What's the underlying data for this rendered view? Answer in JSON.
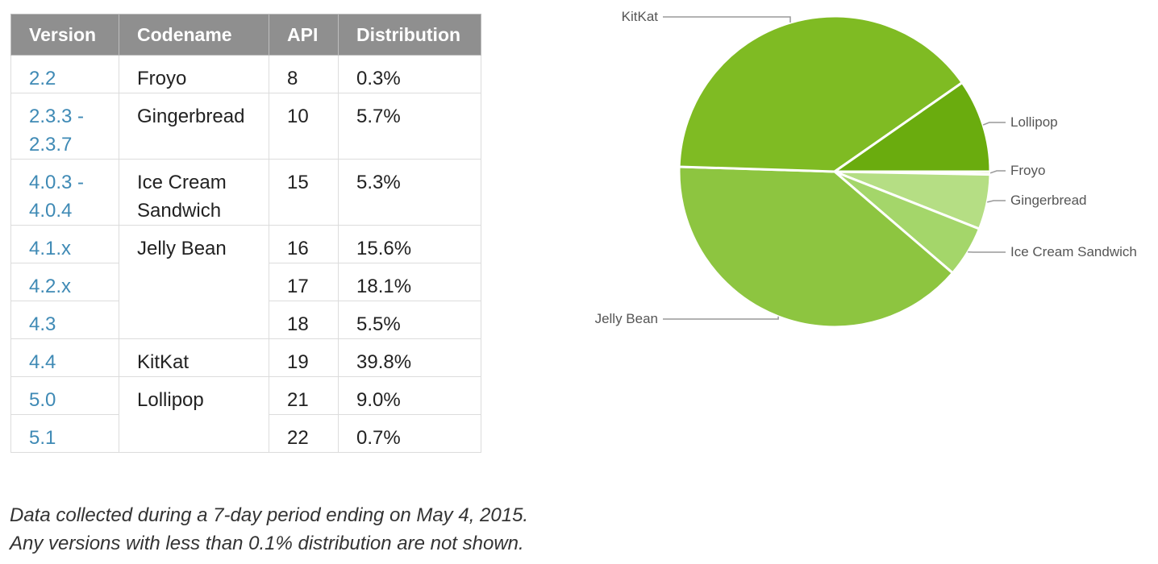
{
  "table": {
    "headers": [
      "Version",
      "Codename",
      "API",
      "Distribution"
    ],
    "groups": [
      {
        "codename": "Froyo",
        "rows": [
          {
            "version": "2.2",
            "api": "8",
            "distribution": "0.3%"
          }
        ]
      },
      {
        "codename": "Gingerbread",
        "rows": [
          {
            "version": "2.3.3 -\n2.3.7",
            "api": "10",
            "distribution": "5.7%"
          }
        ]
      },
      {
        "codename": "Ice Cream\nSandwich",
        "rows": [
          {
            "version": "4.0.3 -\n4.0.4",
            "api": "15",
            "distribution": "5.3%"
          }
        ]
      },
      {
        "codename": "Jelly Bean",
        "rows": [
          {
            "version": "4.1.x",
            "api": "16",
            "distribution": "15.6%"
          },
          {
            "version": "4.2.x",
            "api": "17",
            "distribution": "18.1%"
          },
          {
            "version": "4.3",
            "api": "18",
            "distribution": "5.5%"
          }
        ]
      },
      {
        "codename": "KitKat",
        "rows": [
          {
            "version": "4.4",
            "api": "19",
            "distribution": "39.8%"
          }
        ]
      },
      {
        "codename": "Lollipop",
        "rows": [
          {
            "version": "5.0",
            "api": "21",
            "distribution": "9.0%"
          },
          {
            "version": "5.1",
            "api": "22",
            "distribution": "0.7%"
          }
        ]
      }
    ]
  },
  "footnote": {
    "line1": "Data collected during a 7-day period ending on May 4, 2015.",
    "line2": "Any versions with less than 0.1% distribution are not shown."
  },
  "chart_data": {
    "type": "pie",
    "title": "",
    "start_angle_deg": 0,
    "direction": "clockwise",
    "slices": [
      {
        "label": "Froyo",
        "value": 0.3,
        "color": "#d8efb4"
      },
      {
        "label": "Gingerbread",
        "value": 5.7,
        "color": "#b5de84"
      },
      {
        "label": "Ice Cream Sandwich",
        "value": 5.3,
        "color": "#a4d66a"
      },
      {
        "label": "Jelly Bean",
        "value": 39.2,
        "color": "#8dc540"
      },
      {
        "label": "KitKat",
        "value": 39.8,
        "color": "#7fbb23"
      },
      {
        "label": "Lollipop",
        "value": 9.7,
        "color": "#6aac0e"
      }
    ]
  }
}
